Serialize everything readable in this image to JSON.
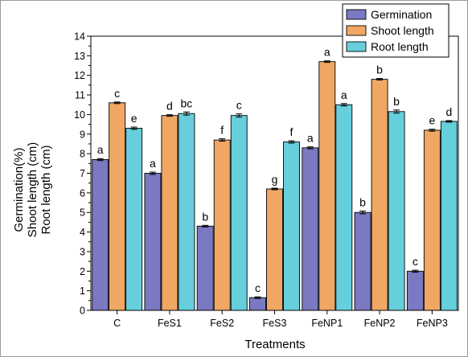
{
  "chart_data": {
    "type": "bar",
    "categories": [
      "C",
      "FeS1",
      "FeS2",
      "FeS3",
      "FeNP1",
      "FeNP2",
      "FeNP3"
    ],
    "xlabel": "Treatments",
    "ylabel_lines": [
      "Germination(%)",
      "Shoot length (cm)",
      "Root length (cm)"
    ],
    "ylim": [
      0,
      14
    ],
    "yticks": [
      0,
      1,
      2,
      3,
      4,
      5,
      6,
      7,
      8,
      9,
      10,
      11,
      12,
      13,
      14
    ],
    "legend_position": "top-right",
    "series": [
      {
        "name": "Germination",
        "color": "#7b79c2",
        "values": [
          7.7,
          7.0,
          4.3,
          0.65,
          8.3,
          5.0,
          2.0
        ],
        "errors": [
          0.05,
          0.06,
          0.04,
          0.04,
          0.05,
          0.07,
          0.05
        ],
        "letters": [
          "a",
          "a",
          "b",
          "c",
          "a",
          "b",
          "c"
        ]
      },
      {
        "name": "Shoot length",
        "color": "#f0a764",
        "values": [
          10.6,
          9.95,
          8.7,
          6.2,
          12.7,
          11.8,
          9.2
        ],
        "errors": [
          0.04,
          0.04,
          0.06,
          0.04,
          0.04,
          0.04,
          0.05
        ],
        "letters": [
          "c",
          "d",
          "f",
          "g",
          "a",
          "b",
          "e"
        ]
      },
      {
        "name": "Root length",
        "color": "#66cfdb",
        "values": [
          9.3,
          10.05,
          9.95,
          8.6,
          10.5,
          10.15,
          9.65
        ],
        "errors": [
          0.06,
          0.08,
          0.08,
          0.06,
          0.06,
          0.08,
          0.04
        ],
        "letters": [
          "e",
          "bc",
          "c",
          "f",
          "a",
          "b",
          "d"
        ]
      }
    ]
  }
}
